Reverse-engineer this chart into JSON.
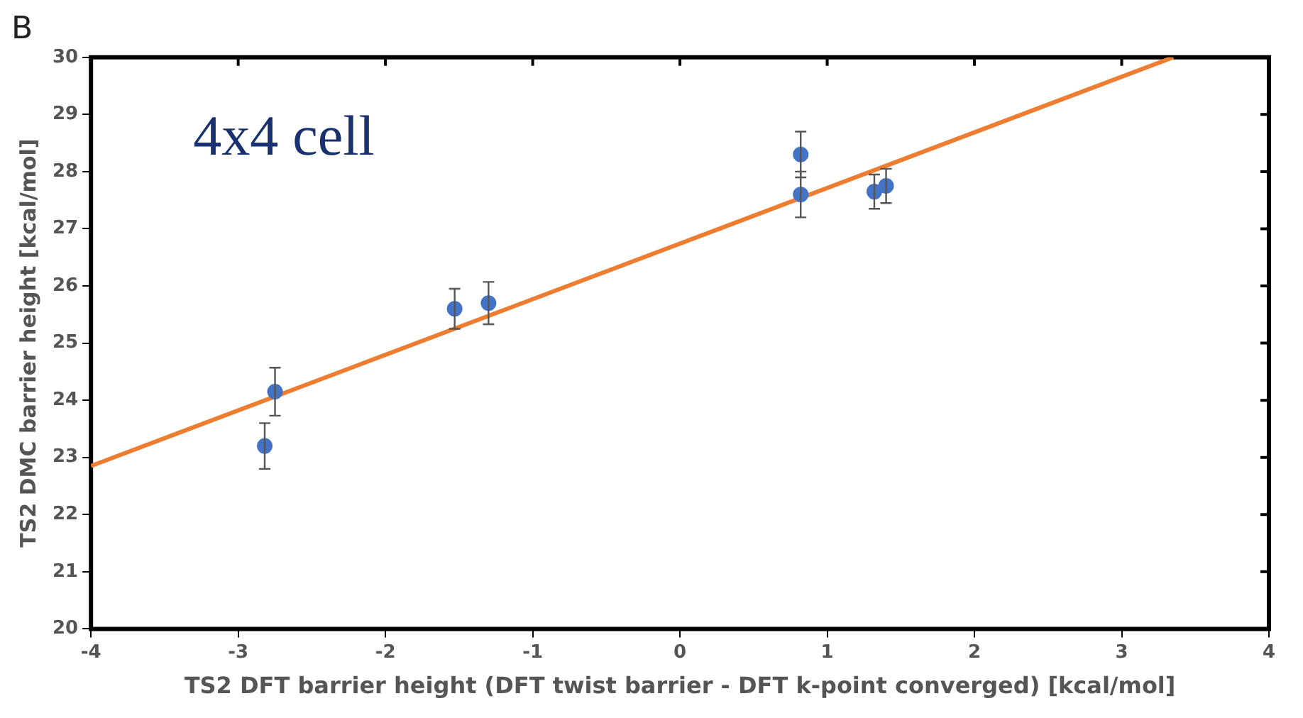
{
  "chart_data": {
    "type": "scatter",
    "title": "B",
    "xlabel": "TS2 DFT barrier height (DFT twist barrier - DFT k-point converged) [kcal/mol]",
    "ylabel": "TS2 DMC barrier height [kcal/mol]",
    "annotations": [
      "4x4 cell"
    ],
    "xlim": [
      -4,
      4
    ],
    "xticks": [
      -4,
      -3,
      -2,
      -1,
      0,
      1,
      2,
      3,
      4
    ],
    "ylim": [
      20,
      30
    ],
    "yticks": [
      20,
      21,
      22,
      23,
      24,
      25,
      26,
      27,
      28,
      29,
      30
    ],
    "grid": false,
    "legend": false,
    "marker": "circle",
    "series": [
      {
        "color": "#4472c4",
        "x": [
          -2.82,
          -2.75,
          -1.53,
          -1.3,
          0.82,
          0.82,
          1.32,
          1.4
        ],
        "values": [
          23.2,
          24.15,
          25.6,
          25.7,
          28.3,
          27.6,
          27.65,
          27.75
        ],
        "errors": [
          0.4,
          0.42,
          0.35,
          0.37,
          0.4,
          0.4,
          0.3,
          0.3
        ]
      },
      {
        "type": "line",
        "color": "#ed7d31",
        "x": [
          -4,
          3.35
        ],
        "values": [
          22.85,
          30
        ],
        "marker": "none"
      }
    ]
  }
}
